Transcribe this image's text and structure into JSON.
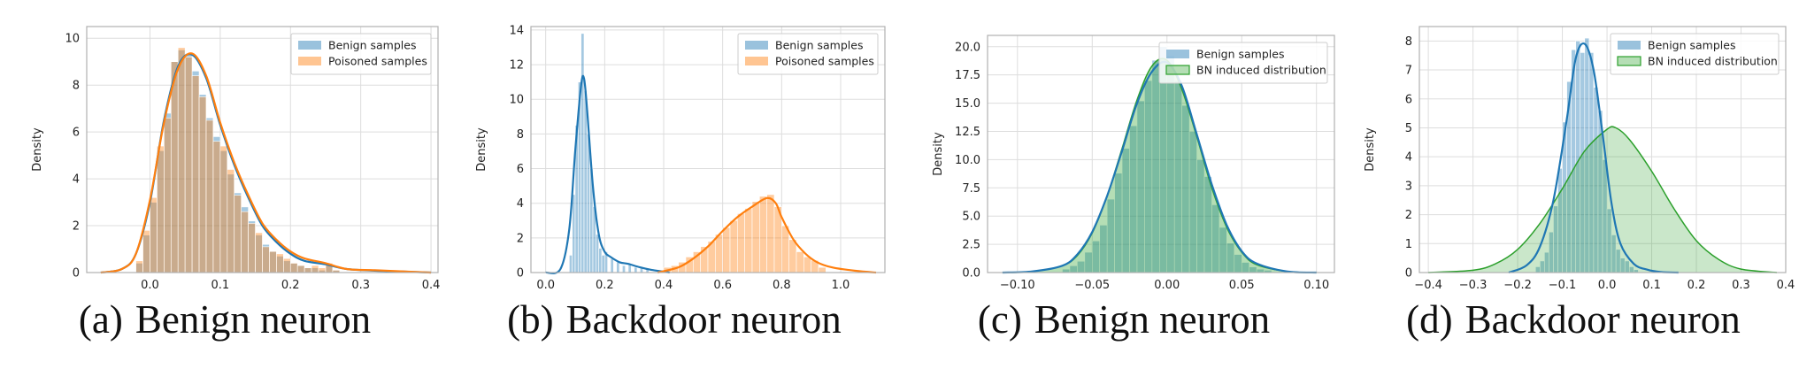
{
  "colors": {
    "blue": "#1f77b4",
    "orange": "#ff7f0e",
    "green": "#2ca02c",
    "grid": "#dddddd",
    "frame": "#b0b0b0"
  },
  "chart_data": [
    {
      "type": "histogram",
      "caption_label": "(a)",
      "caption_text": "Benign neuron",
      "ylabel": "Density",
      "xlim": [
        -0.09,
        0.41
      ],
      "ylim": [
        0,
        10.5
      ],
      "xticks": [
        0.0,
        0.1,
        0.2,
        0.3,
        0.4
      ],
      "xtick_labels": [
        "0.0",
        "0.1",
        "0.2",
        "0.3",
        "0.4"
      ],
      "yticks": [
        0,
        2,
        4,
        6,
        8,
        10
      ],
      "ytick_labels": [
        "0",
        "2",
        "4",
        "6",
        "8",
        "10"
      ],
      "legend_position": "top-right",
      "grid": true,
      "series": [
        {
          "name": "Benign samples",
          "kind": "bars",
          "color": "#1f77b4",
          "alpha": 0.4,
          "bins": [
            -0.02,
            -0.01,
            0.0,
            0.01,
            0.02,
            0.03,
            0.04,
            0.05,
            0.06,
            0.07,
            0.08,
            0.09,
            0.1,
            0.11,
            0.12,
            0.13,
            0.14,
            0.15,
            0.16,
            0.17,
            0.18,
            0.19,
            0.2,
            0.21,
            0.22,
            0.23,
            0.24,
            0.25,
            0.26
          ],
          "values": [
            0.4,
            1.6,
            3.0,
            5.2,
            6.8,
            9.0,
            9.5,
            9.3,
            8.6,
            7.6,
            6.6,
            5.8,
            5.2,
            4.2,
            3.4,
            2.8,
            2.2,
            1.6,
            1.2,
            0.9,
            0.7,
            0.5,
            0.4,
            0.3,
            0.2,
            0.2,
            0.1,
            0.3,
            0.1
          ],
          "bin_width": 0.01
        },
        {
          "name": "Poisoned samples",
          "kind": "bars",
          "color": "#ff7f0e",
          "alpha": 0.4,
          "bins": [
            -0.02,
            -0.01,
            0.0,
            0.01,
            0.02,
            0.03,
            0.04,
            0.05,
            0.06,
            0.07,
            0.08,
            0.09,
            0.1,
            0.11,
            0.12,
            0.13,
            0.14,
            0.15,
            0.16,
            0.17,
            0.18,
            0.19,
            0.2,
            0.21,
            0.22,
            0.23,
            0.24,
            0.25,
            0.26
          ],
          "values": [
            0.5,
            1.8,
            3.2,
            5.4,
            6.6,
            9.0,
            9.6,
            9.2,
            8.4,
            7.5,
            6.5,
            5.6,
            5.4,
            4.4,
            3.3,
            2.6,
            2.1,
            1.7,
            1.1,
            0.9,
            0.8,
            0.6,
            0.4,
            0.3,
            0.2,
            0.3,
            0.2,
            0.4,
            0.1
          ],
          "bin_width": 0.01
        },
        {
          "kind": "kde",
          "color": "#1f77b4",
          "x": [
            -0.07,
            -0.04,
            -0.02,
            0.0,
            0.02,
            0.04,
            0.06,
            0.08,
            0.1,
            0.12,
            0.14,
            0.16,
            0.18,
            0.2,
            0.22,
            0.25,
            0.28,
            0.32,
            0.36,
            0.4
          ],
          "y": [
            0.0,
            0.15,
            0.8,
            3.0,
            6.5,
            8.8,
            9.3,
            8.3,
            6.3,
            4.6,
            3.2,
            2.0,
            1.3,
            0.8,
            0.5,
            0.35,
            0.15,
            0.08,
            0.04,
            0.0
          ]
        },
        {
          "kind": "kde",
          "color": "#ff7f0e",
          "x": [
            -0.07,
            -0.04,
            -0.02,
            0.0,
            0.02,
            0.04,
            0.06,
            0.08,
            0.1,
            0.12,
            0.14,
            0.16,
            0.18,
            0.2,
            0.22,
            0.25,
            0.28,
            0.32,
            0.36,
            0.4
          ],
          "y": [
            0.0,
            0.15,
            0.8,
            3.1,
            6.4,
            8.7,
            9.35,
            8.4,
            6.4,
            4.7,
            3.3,
            2.1,
            1.4,
            0.9,
            0.6,
            0.4,
            0.15,
            0.1,
            0.05,
            0.0
          ]
        }
      ]
    },
    {
      "type": "histogram",
      "caption_label": "(b)",
      "caption_text": "Backdoor neuron",
      "ylabel": "Density",
      "xlim": [
        -0.05,
        1.15
      ],
      "ylim": [
        0,
        14.2
      ],
      "xticks": [
        0.0,
        0.2,
        0.4,
        0.6,
        0.8,
        1.0
      ],
      "xtick_labels": [
        "0.0",
        "0.2",
        "0.4",
        "0.6",
        "0.8",
        "1.0"
      ],
      "yticks": [
        0,
        2,
        4,
        6,
        8,
        10,
        12,
        14
      ],
      "ytick_labels": [
        "0",
        "2",
        "4",
        "6",
        "8",
        "10",
        "12",
        "14"
      ],
      "legend_position": "top-right",
      "grid": true,
      "series": [
        {
          "name": "Benign samples",
          "kind": "bars",
          "color": "#1f77b4",
          "alpha": 0.4,
          "bins": [
            0.08,
            0.09,
            0.1,
            0.11,
            0.12,
            0.13,
            0.14,
            0.15,
            0.16,
            0.17,
            0.18,
            0.19,
            0.2,
            0.22,
            0.24,
            0.26,
            0.28,
            0.3,
            0.32,
            0.34
          ],
          "values": [
            1.0,
            4.5,
            8.5,
            11.0,
            13.8,
            10.5,
            8.0,
            6.0,
            3.8,
            2.2,
            1.4,
            1.0,
            1.2,
            0.8,
            0.6,
            0.4,
            0.5,
            0.3,
            0.3,
            0.2
          ],
          "bin_width": 0.01
        },
        {
          "name": "Poisoned samples",
          "kind": "bars",
          "color": "#ff7f0e",
          "alpha": 0.4,
          "bins": [
            0.4,
            0.425,
            0.45,
            0.475,
            0.5,
            0.525,
            0.55,
            0.575,
            0.6,
            0.625,
            0.65,
            0.675,
            0.7,
            0.725,
            0.75,
            0.775,
            0.8,
            0.825,
            0.85,
            0.875,
            0.9,
            0.925
          ],
          "values": [
            0.3,
            0.4,
            0.6,
            0.9,
            1.2,
            1.5,
            1.8,
            2.2,
            2.6,
            3.0,
            3.4,
            3.7,
            4.1,
            4.4,
            4.5,
            3.8,
            2.7,
            1.9,
            1.2,
            0.9,
            0.7,
            0.3
          ],
          "bin_width": 0.025
        },
        {
          "kind": "kde",
          "color": "#1f77b4",
          "x": [
            0.0,
            0.05,
            0.08,
            0.1,
            0.12,
            0.13,
            0.14,
            0.16,
            0.18,
            0.2,
            0.22,
            0.25,
            0.28,
            0.32,
            0.36,
            0.42
          ],
          "y": [
            0.0,
            0.2,
            2.5,
            7.0,
            10.8,
            11.2,
            9.5,
            5.0,
            2.2,
            1.2,
            0.9,
            0.6,
            0.5,
            0.3,
            0.15,
            0.0
          ]
        },
        {
          "kind": "kde",
          "color": "#ff7f0e",
          "x": [
            0.38,
            0.45,
            0.5,
            0.55,
            0.6,
            0.65,
            0.7,
            0.75,
            0.78,
            0.8,
            0.84,
            0.88,
            0.92,
            0.97,
            1.05,
            1.12
          ],
          "y": [
            0.0,
            0.3,
            0.8,
            1.5,
            2.4,
            3.2,
            3.8,
            4.3,
            4.0,
            3.2,
            1.9,
            1.1,
            0.6,
            0.3,
            0.1,
            0.0
          ]
        }
      ]
    },
    {
      "type": "histogram",
      "caption_label": "(c)",
      "caption_text": "Benign neuron",
      "ylabel": "Density",
      "xlim": [
        -0.12,
        0.112
      ],
      "ylim": [
        0,
        21
      ],
      "xticks": [
        -0.1,
        -0.05,
        0.0,
        0.05,
        0.1
      ],
      "xtick_labels": [
        "−0.10",
        "−0.05",
        "0.00",
        "0.05",
        "0.10"
      ],
      "yticks": [
        0,
        2.5,
        5,
        7.5,
        10,
        12.5,
        15,
        17.5,
        20
      ],
      "ytick_labels": [
        "0.0",
        "2.5",
        "5.0",
        "7.5",
        "10.0",
        "12.5",
        "15.0",
        "17.5",
        "20.0"
      ],
      "legend_position": "top-right",
      "grid": true,
      "series": [
        {
          "name": "Benign samples",
          "kind": "bars",
          "color": "#1f77b4",
          "alpha": 0.4,
          "bins": [
            -0.07,
            -0.065,
            -0.06,
            -0.055,
            -0.05,
            -0.045,
            -0.04,
            -0.035,
            -0.03,
            -0.025,
            -0.02,
            -0.015,
            -0.01,
            -0.005,
            0.0,
            0.005,
            0.01,
            0.015,
            0.02,
            0.025,
            0.03,
            0.035,
            0.04,
            0.045,
            0.05,
            0.055,
            0.06,
            0.065
          ],
          "values": [
            0.3,
            0.6,
            1.0,
            1.8,
            2.8,
            4.2,
            6.5,
            8.8,
            11.0,
            13.0,
            15.2,
            17.0,
            18.8,
            20.0,
            19.2,
            17.0,
            14.8,
            12.5,
            10.0,
            8.5,
            6.0,
            4.0,
            2.6,
            1.6,
            0.9,
            0.5,
            0.3,
            0.2
          ],
          "bin_width": 0.005
        },
        {
          "name": "BN induced distribution",
          "kind": "area",
          "color": "#2ca02c",
          "alpha": 0.35,
          "x": [
            -0.11,
            -0.09,
            -0.07,
            -0.06,
            -0.05,
            -0.04,
            -0.03,
            -0.02,
            -0.01,
            0.0,
            0.01,
            0.02,
            0.03,
            0.04,
            0.05,
            0.06,
            0.08,
            0.1
          ],
          "y": [
            0.0,
            0.1,
            0.6,
            1.5,
            3.5,
            6.8,
            11.0,
            15.3,
            18.3,
            18.8,
            16.2,
            12.0,
            7.5,
            4.0,
            1.8,
            0.7,
            0.1,
            0.0
          ]
        },
        {
          "kind": "kde",
          "color": "#1f77b4",
          "x": [
            -0.11,
            -0.09,
            -0.07,
            -0.06,
            -0.05,
            -0.04,
            -0.03,
            -0.02,
            -0.01,
            0.0,
            0.01,
            0.02,
            0.03,
            0.04,
            0.05,
            0.06,
            0.08,
            0.1
          ],
          "y": [
            0.0,
            0.1,
            0.6,
            1.6,
            3.6,
            6.8,
            10.8,
            15.0,
            17.8,
            18.6,
            16.5,
            12.2,
            7.8,
            4.2,
            1.9,
            0.8,
            0.1,
            0.0
          ]
        }
      ]
    },
    {
      "type": "histogram",
      "caption_label": "(d)",
      "caption_text": "Backdoor neuron",
      "ylabel": "Density",
      "xlim": [
        -0.42,
        0.4
      ],
      "ylim": [
        0,
        8.5
      ],
      "xticks": [
        -0.4,
        -0.3,
        -0.2,
        -0.1,
        0.0,
        0.1,
        0.2,
        0.3,
        0.4
      ],
      "xtick_labels": [
        "−0.4",
        "−0.3",
        "−0.2",
        "−0.1",
        "0.0",
        "0.1",
        "0.2",
        "0.3",
        "0.4"
      ],
      "yticks": [
        0,
        1,
        2,
        3,
        4,
        5,
        6,
        7,
        8
      ],
      "ytick_labels": [
        "0",
        "1",
        "2",
        "3",
        "4",
        "5",
        "6",
        "7",
        "8"
      ],
      "legend_position": "top-right",
      "grid": true,
      "series": [
        {
          "name": "Benign samples",
          "kind": "bars",
          "color": "#1f77b4",
          "alpha": 0.4,
          "bins": [
            -0.16,
            -0.15,
            -0.14,
            -0.13,
            -0.12,
            -0.11,
            -0.1,
            -0.09,
            -0.08,
            -0.07,
            -0.06,
            -0.05,
            -0.04,
            -0.03,
            -0.02,
            -0.01,
            0.0,
            0.01,
            0.02,
            0.03,
            0.04,
            0.05,
            0.06
          ],
          "values": [
            0.2,
            0.4,
            0.7,
            1.4,
            2.3,
            3.6,
            5.2,
            6.6,
            7.7,
            8.0,
            7.6,
            8.1,
            7.6,
            6.4,
            5.6,
            3.9,
            2.2,
            1.3,
            0.8,
            0.5,
            0.4,
            0.2,
            0.1
          ],
          "bin_width": 0.01
        },
        {
          "name": "BN induced distribution",
          "kind": "area",
          "color": "#2ca02c",
          "alpha": 0.25,
          "x": [
            -0.4,
            -0.3,
            -0.25,
            -0.2,
            -0.15,
            -0.1,
            -0.05,
            0.0,
            0.02,
            0.05,
            0.1,
            0.15,
            0.2,
            0.25,
            0.3,
            0.38
          ],
          "y": [
            0.0,
            0.08,
            0.3,
            0.8,
            1.7,
            2.9,
            4.2,
            4.95,
            5.0,
            4.6,
            3.5,
            2.2,
            1.1,
            0.45,
            0.12,
            0.0
          ]
        },
        {
          "kind": "kde",
          "color": "#1f77b4",
          "x": [
            -0.22,
            -0.18,
            -0.15,
            -0.12,
            -0.09,
            -0.07,
            -0.05,
            -0.03,
            -0.01,
            0.01,
            0.03,
            0.06,
            0.09,
            0.12,
            0.16
          ],
          "y": [
            0.0,
            0.25,
            0.9,
            2.5,
            5.3,
            7.4,
            7.9,
            7.0,
            4.8,
            2.4,
            1.0,
            0.3,
            0.1,
            0.02,
            0.0
          ]
        }
      ]
    }
  ]
}
